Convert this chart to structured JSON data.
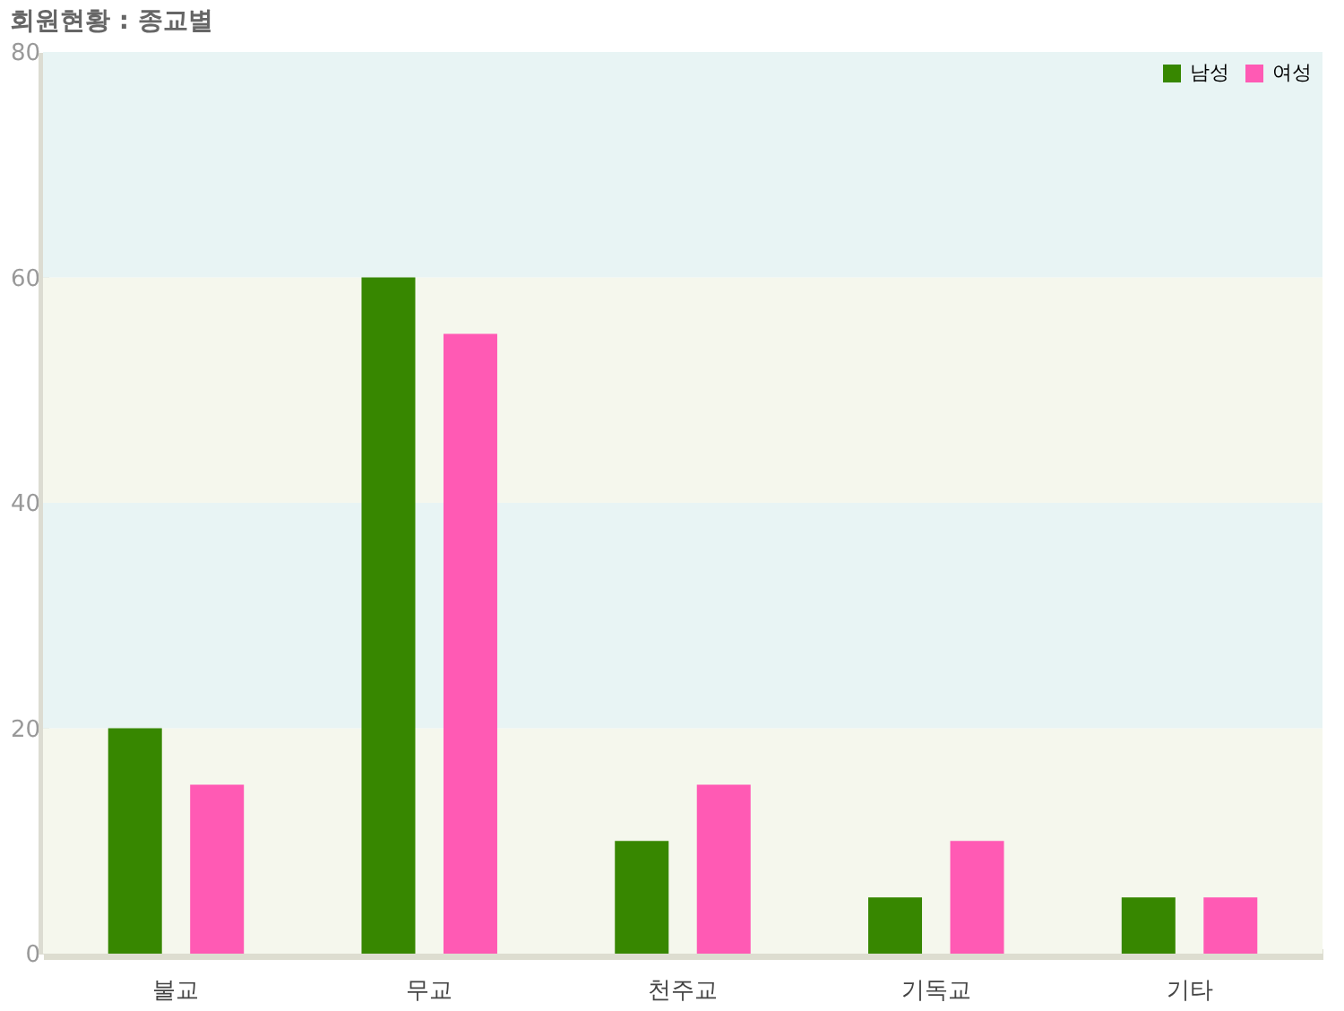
{
  "chart_data": {
    "type": "bar",
    "title": "회원현황 : 종교별",
    "categories": [
      "불교",
      "무교",
      "천주교",
      "기독교",
      "기타"
    ],
    "series": [
      {
        "name": "남성",
        "color": "#378700",
        "values": [
          20,
          60,
          10,
          5,
          5
        ]
      },
      {
        "name": "여성",
        "color": "#ff5ab4",
        "values": [
          15,
          55,
          15,
          10,
          5
        ]
      }
    ],
    "ylim": [
      0,
      80
    ],
    "yticks": [
      0,
      20,
      40,
      60,
      80
    ],
    "grid": false,
    "legend": "top right",
    "bands": [
      {
        "axis": "y",
        "from": 0,
        "to": 20,
        "color": "#f5f7ed"
      },
      {
        "axis": "y",
        "from": 20,
        "to": 40,
        "color": "#e8f4f4"
      },
      {
        "axis": "y",
        "from": 40,
        "to": 60,
        "color": "#f5f7ed"
      },
      {
        "axis": "y",
        "from": 60,
        "to": 80,
        "color": "#e8f4f4"
      }
    ]
  }
}
